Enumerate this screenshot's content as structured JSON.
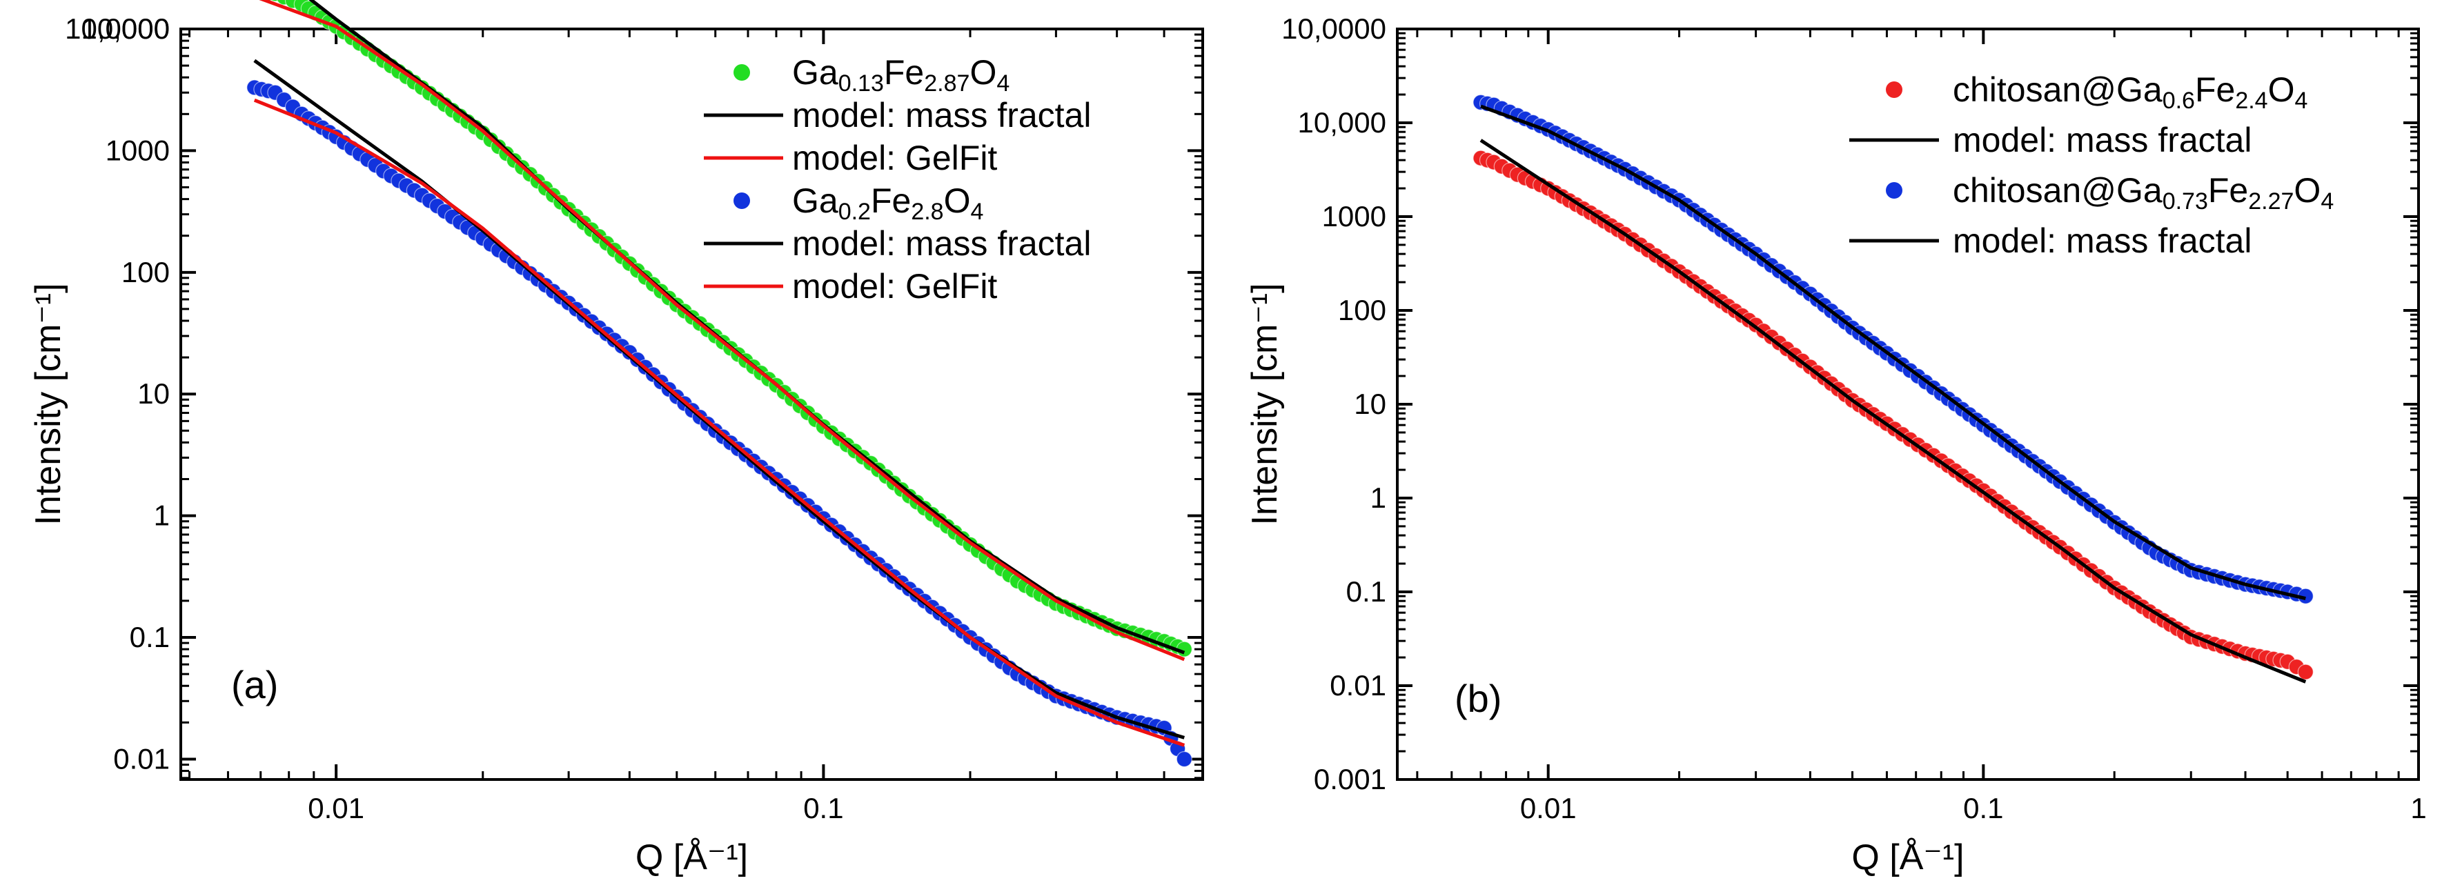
{
  "chart_data": [
    {
      "type": "scatter",
      "panel_label": "(a)",
      "xscale": "log",
      "yscale": "log",
      "xlim": [
        0.0048,
        0.6
      ],
      "ylim": [
        0.0068,
        10000
      ],
      "xlabel": "Q [Å⁻¹]",
      "ylabel": "Intensity [cm⁻¹]",
      "xticks": [
        {
          "value": 0.01,
          "label": "0.01"
        },
        {
          "value": 0.1,
          "label": "0.1"
        }
      ],
      "yticks": [
        {
          "value": 0.01,
          "label": "0.01"
        },
        {
          "value": 0.1,
          "label": "0.1"
        },
        {
          "value": 1,
          "label": "1"
        },
        {
          "value": 10,
          "label": "10"
        },
        {
          "value": 100,
          "label": "100"
        },
        {
          "value": 1000,
          "label": "1000"
        },
        {
          "value": 10000,
          "label": "10,000"
        },
        {
          "value": 100000,
          "label": "10,0000"
        }
      ],
      "legend_position": "top-right",
      "series": [
        {
          "name": "Ga0.13Fe2.87O4",
          "kind": "points",
          "color": "#22dd22",
          "legend": {
            "base": "Ga",
            "sub1": "0.13",
            "mid": "Fe",
            "sub2": "2.87",
            "end": "O",
            "sub3": "4"
          },
          "x": [
            0.0068,
            0.0075,
            0.0085,
            0.01,
            0.0125,
            0.015,
            0.02,
            0.025,
            0.03,
            0.04,
            0.05,
            0.06,
            0.08,
            0.1,
            0.125,
            0.15,
            0.2,
            0.25,
            0.3,
            0.4,
            0.5,
            0.55
          ],
          "y": [
            20000,
            19500,
            16000,
            10500,
            5500,
            3300,
            1400,
            640,
            330,
            118,
            54,
            30,
            11.8,
            5.4,
            2.7,
            1.45,
            0.58,
            0.29,
            0.19,
            0.118,
            0.093,
            0.08
          ]
        },
        {
          "name": "model: mass fractal",
          "kind": "line",
          "color": "#000000",
          "legend": {
            "text": "model: mass fractal"
          },
          "x": [
            0.0068,
            0.01,
            0.015,
            0.02,
            0.03,
            0.05,
            0.08,
            0.1,
            0.15,
            0.2,
            0.3,
            0.4,
            0.55
          ],
          "y": [
            40000,
            12000,
            3600,
            1550,
            330,
            56,
            12,
            5.6,
            1.55,
            0.62,
            0.21,
            0.12,
            0.075
          ]
        },
        {
          "name": "model: GelFit",
          "kind": "line",
          "color": "#ee1111",
          "legend": {
            "text": "model: GelFit"
          },
          "x": [
            0.0068,
            0.01,
            0.015,
            0.02,
            0.03,
            0.05,
            0.08,
            0.1,
            0.15,
            0.2,
            0.3,
            0.4,
            0.55
          ],
          "y": [
            18500,
            10500,
            3500,
            1450,
            340,
            54,
            12,
            5.5,
            1.45,
            0.6,
            0.2,
            0.11,
            0.066
          ]
        },
        {
          "name": "Ga0.2Fe2.8O4",
          "kind": "points",
          "color": "#1133dd",
          "legend": {
            "base": "Ga",
            "sub1": "0.2",
            "mid": "Fe",
            "sub2": "2.8",
            "end": "O",
            "sub3": "4"
          },
          "x": [
            0.0068,
            0.0075,
            0.0085,
            0.01,
            0.0125,
            0.015,
            0.02,
            0.025,
            0.03,
            0.04,
            0.05,
            0.06,
            0.08,
            0.1,
            0.125,
            0.15,
            0.2,
            0.25,
            0.3,
            0.4,
            0.5,
            0.55
          ],
          "y": [
            3300,
            3000,
            2000,
            1300,
            680,
            430,
            190,
            98,
            56,
            22,
            9.5,
            5,
            2,
            0.95,
            0.45,
            0.25,
            0.1,
            0.05,
            0.033,
            0.022,
            0.018,
            0.01
          ]
        },
        {
          "name": "model: mass fractal",
          "kind": "line",
          "color": "#000000",
          "legend": {
            "text": "model: mass fractal"
          },
          "x": [
            0.0068,
            0.01,
            0.015,
            0.02,
            0.03,
            0.05,
            0.08,
            0.1,
            0.15,
            0.2,
            0.3,
            0.4,
            0.55
          ],
          "y": [
            5500,
            1800,
            560,
            220,
            55,
            9.5,
            1.9,
            0.9,
            0.24,
            0.1,
            0.035,
            0.022,
            0.015
          ]
        },
        {
          "name": "model: GelFit",
          "kind": "line",
          "color": "#ee1111",
          "legend": {
            "text": "model: GelFit"
          },
          "x": [
            0.0068,
            0.01,
            0.015,
            0.02,
            0.03,
            0.05,
            0.08,
            0.1,
            0.15,
            0.2,
            0.3,
            0.4,
            0.55
          ],
          "y": [
            2600,
            1400,
            540,
            230,
            57,
            9.8,
            2,
            0.95,
            0.25,
            0.1,
            0.033,
            0.02,
            0.013
          ]
        }
      ]
    },
    {
      "type": "scatter",
      "panel_label": "(b)",
      "xscale": "log",
      "yscale": "log",
      "xlim": [
        0.0045,
        1.0
      ],
      "ylim": [
        0.001,
        100000
      ],
      "xlabel": "Q [Å⁻¹]",
      "ylabel": "Intensity [cm⁻¹]",
      "xticks": [
        {
          "value": 0.01,
          "label": "0.01"
        },
        {
          "value": 0.1,
          "label": "0.1"
        },
        {
          "value": 1,
          "label": "1"
        }
      ],
      "yticks": [
        {
          "value": 0.001,
          "label": "0.001"
        },
        {
          "value": 0.01,
          "label": "0.01"
        },
        {
          "value": 0.1,
          "label": "0.1"
        },
        {
          "value": 1,
          "label": "1"
        },
        {
          "value": 10,
          "label": "10"
        },
        {
          "value": 100,
          "label": "100"
        },
        {
          "value": 1000,
          "label": "1000"
        },
        {
          "value": 10000,
          "label": "10,000"
        },
        {
          "value": 100000,
          "label": "10,0000"
        }
      ],
      "legend_position": "top-right",
      "series": [
        {
          "name": "chitosan@Ga0.6Fe2.4O4",
          "kind": "points",
          "color": "#ee2222",
          "legend": {
            "base": "chitosan@Ga",
            "sub1": "0.6",
            "mid": "Fe",
            "sub2": "2.4",
            "end": "O",
            "sub3": "4"
          },
          "x": [
            0.007,
            0.0075,
            0.0085,
            0.01,
            0.0125,
            0.015,
            0.02,
            0.025,
            0.03,
            0.04,
            0.05,
            0.06,
            0.08,
            0.1,
            0.125,
            0.15,
            0.2,
            0.25,
            0.3,
            0.4,
            0.5,
            0.55
          ],
          "y": [
            4200,
            3800,
            2800,
            2000,
            1100,
            650,
            260,
            125,
            70,
            25,
            11,
            6.2,
            2.5,
            1.2,
            0.55,
            0.3,
            0.11,
            0.055,
            0.033,
            0.022,
            0.018,
            0.014
          ]
        },
        {
          "name": "model: mass fractal",
          "kind": "line",
          "color": "#000000",
          "legend": {
            "text": "model: mass fractal"
          },
          "x": [
            0.007,
            0.01,
            0.015,
            0.02,
            0.03,
            0.05,
            0.08,
            0.1,
            0.15,
            0.2,
            0.3,
            0.4,
            0.55
          ],
          "y": [
            6500,
            2200,
            650,
            260,
            66,
            11,
            2.4,
            1.15,
            0.3,
            0.11,
            0.035,
            0.02,
            0.011
          ]
        },
        {
          "name": "chitosan@Ga0.73Fe2.27O4",
          "kind": "points",
          "color": "#1133dd",
          "legend": {
            "base": "chitosan@Ga",
            "sub1": "0.73",
            "mid": "Fe",
            "sub2": "2.27",
            "end": "O",
            "sub3": "4"
          },
          "x": [
            0.007,
            0.0075,
            0.0085,
            0.01,
            0.0125,
            0.015,
            0.02,
            0.025,
            0.03,
            0.04,
            0.05,
            0.06,
            0.08,
            0.1,
            0.125,
            0.15,
            0.2,
            0.25,
            0.3,
            0.4,
            0.5,
            0.55
          ],
          "y": [
            16500,
            15500,
            12000,
            8500,
            5000,
            3200,
            1500,
            720,
            400,
            150,
            65,
            35,
            13,
            6,
            2.8,
            1.5,
            0.55,
            0.26,
            0.17,
            0.12,
            0.1,
            0.09
          ]
        },
        {
          "name": "model: mass fractal",
          "kind": "line",
          "color": "#000000",
          "legend": {
            "text": "model: mass fractal"
          },
          "x": [
            0.007,
            0.01,
            0.015,
            0.02,
            0.03,
            0.05,
            0.08,
            0.1,
            0.15,
            0.2,
            0.3,
            0.4,
            0.55
          ],
          "y": [
            15000,
            8200,
            3200,
            1500,
            400,
            66,
            13.5,
            6.2,
            1.5,
            0.56,
            0.18,
            0.12,
            0.085
          ]
        }
      ]
    }
  ]
}
